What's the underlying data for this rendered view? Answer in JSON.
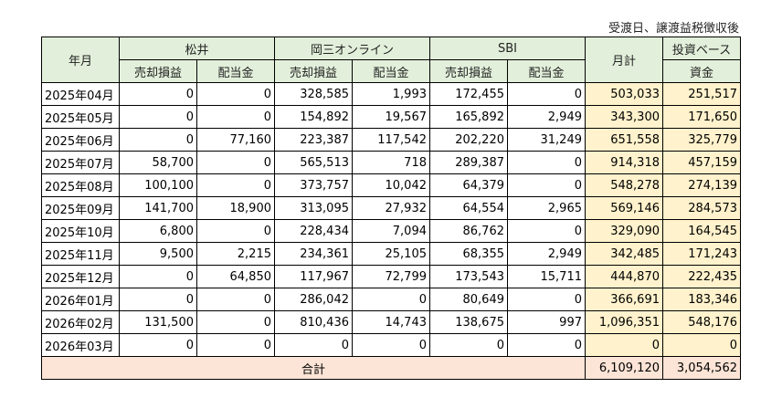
{
  "note": "受渡日、譲渡益税徴収後",
  "header": {
    "month": "年月",
    "brokers": [
      {
        "name": "松井",
        "sub": [
          "売却損益",
          "配当金"
        ]
      },
      {
        "name": "岡三オンライン",
        "sub": [
          "売却損益",
          "配当金"
        ]
      },
      {
        "name": "SBI",
        "sub": [
          "売却損益",
          "配当金"
        ]
      }
    ],
    "monthly_total": "月計",
    "investment_base_line1": "投資ベース",
    "investment_base_line2": "資金"
  },
  "rows": [
    {
      "month": "2025年04月",
      "values": [
        "0",
        "0",
        "328,585",
        "1,993",
        "172,455",
        "0",
        "503,033",
        "251,517"
      ]
    },
    {
      "month": "2025年05月",
      "values": [
        "0",
        "0",
        "154,892",
        "19,567",
        "165,892",
        "2,949",
        "343,300",
        "171,650"
      ]
    },
    {
      "month": "2025年06月",
      "values": [
        "0",
        "77,160",
        "223,387",
        "117,542",
        "202,220",
        "31,249",
        "651,558",
        "325,779"
      ]
    },
    {
      "month": "2025年07月",
      "values": [
        "58,700",
        "0",
        "565,513",
        "718",
        "289,387",
        "0",
        "914,318",
        "457,159"
      ]
    },
    {
      "month": "2025年08月",
      "values": [
        "100,100",
        "0",
        "373,757",
        "10,042",
        "64,379",
        "0",
        "548,278",
        "274,139"
      ]
    },
    {
      "month": "2025年09月",
      "values": [
        "141,700",
        "18,900",
        "313,095",
        "27,932",
        "64,554",
        "2,965",
        "569,146",
        "284,573"
      ]
    },
    {
      "month": "2025年10月",
      "values": [
        "6,800",
        "0",
        "228,434",
        "7,094",
        "86,762",
        "0",
        "329,090",
        "164,545"
      ]
    },
    {
      "month": "2025年11月",
      "values": [
        "9,500",
        "2,215",
        "234,361",
        "25,105",
        "68,355",
        "2,949",
        "342,485",
        "171,243"
      ]
    },
    {
      "month": "2025年12月",
      "values": [
        "0",
        "64,850",
        "117,967",
        "72,799",
        "173,543",
        "15,711",
        "444,870",
        "222,435"
      ]
    },
    {
      "month": "2026年01月",
      "values": [
        "0",
        "0",
        "286,042",
        "0",
        "80,649",
        "0",
        "366,691",
        "183,346"
      ]
    },
    {
      "month": "2026年02月",
      "values": [
        "131,500",
        "0",
        "810,436",
        "14,743",
        "138,675",
        "997",
        "1,096,351",
        "548,176"
      ]
    },
    {
      "month": "2026年03月",
      "values": [
        "0",
        "0",
        "0",
        "0",
        "0",
        "0",
        "0",
        "0"
      ]
    }
  ],
  "total": {
    "label": "合計",
    "monthly_total": "6,109,120",
    "investment_base": "3,054,562"
  },
  "colors": {
    "header_bg": "#e2efda",
    "highlight_bg": "#fff2cc",
    "total_bg": "#fce4d6"
  }
}
